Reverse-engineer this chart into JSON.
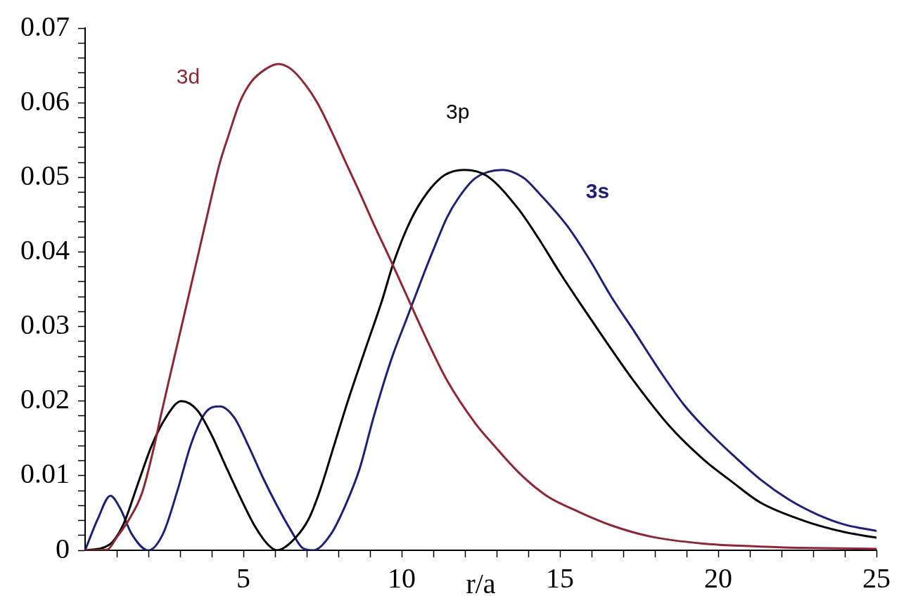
{
  "chart_data": {
    "type": "line",
    "xlabel": "r/a",
    "xlim": [
      0,
      25
    ],
    "ylim": [
      0,
      0.07
    ],
    "xticks": [
      {
        "value": 1,
        "label": null
      },
      {
        "value": 2,
        "label": null
      },
      {
        "value": 3,
        "label": null
      },
      {
        "value": 4,
        "label": null
      },
      5,
      {
        "value": 6,
        "label": null
      },
      {
        "value": 7,
        "label": null
      },
      {
        "value": 8,
        "label": null
      },
      {
        "value": 9,
        "label": null
      },
      10,
      {
        "value": 11,
        "label": null
      },
      {
        "value": 12,
        "label": null
      },
      {
        "value": 13,
        "label": null
      },
      {
        "value": 14,
        "label": null
      },
      15,
      {
        "value": 16,
        "label": null
      },
      {
        "value": 17,
        "label": null
      },
      {
        "value": 18,
        "label": null
      },
      {
        "value": 19,
        "label": null
      },
      20,
      {
        "value": 21,
        "label": null
      },
      {
        "value": 22,
        "label": null
      },
      {
        "value": 23,
        "label": null
      },
      {
        "value": 24,
        "label": null
      },
      25
    ],
    "yticks": [
      0,
      {
        "value": 0.002,
        "label": null
      },
      {
        "value": 0.004,
        "label": null
      },
      {
        "value": 0.006,
        "label": null
      },
      {
        "value": 0.008,
        "label": null
      },
      0.01,
      {
        "value": 0.012,
        "label": null
      },
      {
        "value": 0.014,
        "label": null
      },
      {
        "value": 0.016,
        "label": null
      },
      {
        "value": 0.018,
        "label": null
      },
      0.02,
      {
        "value": 0.022,
        "label": null
      },
      {
        "value": 0.024,
        "label": null
      },
      {
        "value": 0.026,
        "label": null
      },
      {
        "value": 0.028,
        "label": null
      },
      0.03,
      {
        "value": 0.032,
        "label": null
      },
      {
        "value": 0.034,
        "label": null
      },
      {
        "value": 0.036,
        "label": null
      },
      {
        "value": 0.038,
        "label": null
      },
      0.04,
      {
        "value": 0.042,
        "label": null
      },
      {
        "value": 0.044,
        "label": null
      },
      {
        "value": 0.046,
        "label": null
      },
      {
        "value": 0.048,
        "label": null
      },
      0.05,
      {
        "value": 0.052,
        "label": null
      },
      {
        "value": 0.054,
        "label": null
      },
      {
        "value": 0.056,
        "label": null
      },
      {
        "value": 0.058,
        "label": null
      },
      0.06,
      {
        "value": 0.062,
        "label": null
      },
      {
        "value": 0.064,
        "label": null
      },
      {
        "value": 0.066,
        "label": null
      },
      {
        "value": 0.068,
        "label": null
      },
      0.07
    ],
    "series": [
      {
        "name": "3d",
        "color": "#8e2633",
        "x": [
          0,
          0.7,
          1.01,
          1.37,
          1.8,
          2.18,
          2.4,
          2.82,
          3.15,
          3.63,
          3.94,
          4.26,
          4.53,
          4.89,
          5.25,
          5.7,
          6.1,
          6.51,
          6.96,
          7.32,
          7.77,
          8.21,
          8.67,
          9.11,
          9.65,
          10.28,
          10.82,
          11.43,
          12.33,
          12.95,
          13.68,
          14.58,
          15.57,
          16.65,
          17.91,
          19.53,
          21.33,
          23,
          25
        ],
        "values": [
          0,
          0.0001,
          0.0018,
          0.004,
          0.0077,
          0.0139,
          0.0182,
          0.0259,
          0.0319,
          0.0407,
          0.0464,
          0.052,
          0.0556,
          0.0601,
          0.0628,
          0.0645,
          0.0652,
          0.0645,
          0.0624,
          0.0601,
          0.0563,
          0.0522,
          0.048,
          0.0438,
          0.0389,
          0.033,
          0.028,
          0.0228,
          0.017,
          0.0139,
          0.0105,
          0.0073,
          0.0052,
          0.0033,
          0.0018,
          0.0009,
          0.0005,
          0.0003,
          0.0002
        ]
      },
      {
        "name": "3p",
        "color": "#000000",
        "x": [
          0,
          0.75,
          1.2,
          1.65,
          2.1,
          2.55,
          3.04,
          3.54,
          3.99,
          4.44,
          4.89,
          5.34,
          5.79,
          6.06,
          6.51,
          7.05,
          7.41,
          7.86,
          8.3,
          8.84,
          9.38,
          9.74,
          10.28,
          10.82,
          11.36,
          11.97,
          12.69,
          13.68,
          14.31,
          15.03,
          15.75,
          16.47,
          17.28,
          18.45,
          19.53,
          20.43,
          21.33,
          22.68,
          24.03,
          25
        ],
        "values": [
          0,
          0.0007,
          0.0034,
          0.0087,
          0.014,
          0.0178,
          0.02,
          0.0188,
          0.0155,
          0.0113,
          0.0072,
          0.0034,
          0.0007,
          0,
          0.0011,
          0.0041,
          0.0079,
          0.014,
          0.02,
          0.0268,
          0.0335,
          0.0385,
          0.0442,
          0.048,
          0.0503,
          0.051,
          0.0502,
          0.0458,
          0.0419,
          0.037,
          0.0324,
          0.0279,
          0.023,
          0.0167,
          0.0122,
          0.0092,
          0.0064,
          0.004,
          0.0024,
          0.0017
        ]
      },
      {
        "name": "3s",
        "color": "#1f1f7a",
        "x": [
          0,
          0.39,
          0.8,
          1.11,
          1.47,
          2.0,
          2.46,
          2.91,
          3.36,
          3.81,
          4.26,
          4.71,
          5.16,
          5.61,
          6.06,
          6.51,
          6.87,
          7.2,
          7.77,
          8.22,
          8.67,
          9.11,
          9.65,
          10.19,
          10.73,
          11.09,
          11.43,
          11.79,
          12.33,
          13.19,
          13.86,
          14.31,
          15.21,
          15.93,
          16.65,
          17.37,
          18.18,
          18.9,
          19.53,
          20.43,
          21.33,
          22.23,
          23.13,
          24.03,
          25
        ],
        "values": [
          0,
          0.0041,
          0.0073,
          0.0056,
          0.0022,
          0,
          0.0022,
          0.0079,
          0.0144,
          0.0185,
          0.0193,
          0.0178,
          0.014,
          0.0098,
          0.006,
          0.0026,
          0.0003,
          0,
          0.0022,
          0.006,
          0.0109,
          0.0178,
          0.0253,
          0.0314,
          0.0374,
          0.0412,
          0.0446,
          0.0472,
          0.0499,
          0.051,
          0.0499,
          0.048,
          0.0436,
          0.039,
          0.0338,
          0.0292,
          0.0239,
          0.0196,
          0.0166,
          0.0129,
          0.0095,
          0.0068,
          0.0048,
          0.0034,
          0.0026
        ]
      }
    ]
  }
}
